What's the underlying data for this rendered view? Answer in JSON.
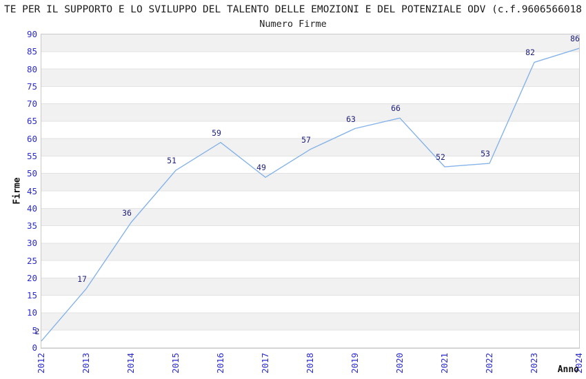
{
  "header": {
    "title": "TE PER IL SUPPORTO E LO SVILUPPO DEL TALENTO DELLE EMOZIONI E DEL POTENZIALE ODV (c.f.9606566018",
    "subtitle": "Numero Firme"
  },
  "colors": {
    "line": "#85b3e8",
    "data_label": "#20207a",
    "tick_label": "#2b2bd0",
    "band_gray": "#f1f1f1",
    "gridline": "#e2e2e2",
    "plot_border": "#c9c9c9",
    "background": "#ffffff"
  },
  "chart_data": {
    "type": "line",
    "title": "Numero Firme",
    "xlabel": "Anno",
    "ylabel": "Firme",
    "x": [
      "2012",
      "2013",
      "2014",
      "2015",
      "2016",
      "2017",
      "2018",
      "2019",
      "2020",
      "2021",
      "2022",
      "2023",
      "2024"
    ],
    "series": [
      {
        "name": "Numero Firme",
        "values": [
          2,
          17,
          36,
          51,
          59,
          49,
          57,
          63,
          66,
          52,
          53,
          82,
          86
        ]
      }
    ],
    "ylim": [
      0,
      90
    ],
    "ytick_step": 5,
    "grid": "horizontal gridlines with alternating gray bands every 5 units",
    "legend": "none",
    "point_labels": "values shown above each point",
    "x_tick_rotation": -90
  }
}
